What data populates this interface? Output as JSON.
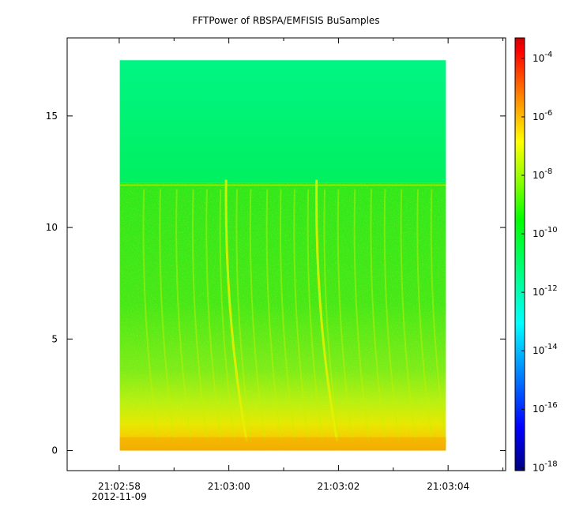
{
  "chart_data": {
    "type": "heatmap",
    "title": "FFTPower of RBSPA/EMFISIS  BuSamples",
    "xlabel": "",
    "ylabel": "",
    "x_axis": {
      "ticks": [
        {
          "label": "21:02:58",
          "t": 0
        },
        {
          "label": "21:03:00",
          "t": 2
        },
        {
          "label": "21:03:02",
          "t": 4
        },
        {
          "label": "21:03:04",
          "t": 6
        }
      ],
      "minor_ticks_s": [
        1,
        3,
        5,
        7
      ],
      "date_label": "2012-11-09",
      "range_s": [
        -0.95,
        7.05
      ]
    },
    "y_axis": {
      "ticks": [
        0,
        5,
        10,
        15
      ],
      "range": [
        -0.9,
        18.5
      ]
    },
    "data_extent": {
      "t_start_s": 0.01,
      "t_end_s": 5.96,
      "y_min": 0,
      "y_max": 17.5,
      "band_edge_y": 12.0
    },
    "features": {
      "vertical_streak_times_s": [
        0.45,
        0.75,
        1.05,
        1.35,
        1.6,
        1.85,
        2.15,
        2.4,
        2.7,
        2.95,
        3.2,
        3.45,
        3.75,
        4.0,
        4.3,
        4.6,
        4.85,
        5.15,
        5.45,
        5.7
      ],
      "strong_streak_times_s": [
        1.95,
        3.6
      ],
      "line_at_y": 11.9
    },
    "colorbar": {
      "scale": "log",
      "ticks": [
        {
          "base": "10",
          "exp": "-4",
          "exponent": -4
        },
        {
          "base": "10",
          "exp": "-6",
          "exponent": -6
        },
        {
          "base": "10",
          "exp": "-8",
          "exponent": -8
        },
        {
          "base": "10",
          "exp": "-10",
          "exponent": -10
        },
        {
          "base": "10",
          "exp": "-12",
          "exponent": -12
        },
        {
          "base": "10",
          "exp": "-14",
          "exponent": -14
        },
        {
          "base": "10",
          "exp": "-16",
          "exponent": -16
        },
        {
          "base": "10",
          "exp": "-18",
          "exponent": -18
        }
      ],
      "range_exponent": [
        -18.1,
        -3.3
      ],
      "colors": [
        "#00007f",
        "#0000ff",
        "#007fff",
        "#00ffff",
        "#00ff7f",
        "#00ff00",
        "#7fff00",
        "#ffff00",
        "#ff7f00",
        "#ff0000",
        "#d00000"
      ]
    }
  }
}
